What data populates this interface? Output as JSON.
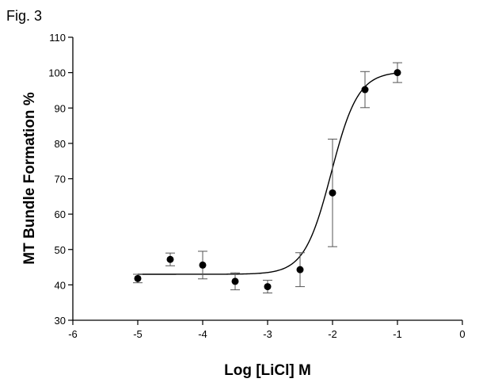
{
  "figure_label": "Fig. 3",
  "chart_data": {
    "type": "scatter",
    "xlabel": "Log [LiCl] M",
    "ylabel": "MT Bundle Formation %",
    "xlim": [
      -6,
      0
    ],
    "ylim": [
      30,
      110
    ],
    "x_ticks": [
      -6,
      -5,
      -4,
      -3,
      -2,
      -1,
      0
    ],
    "y_ticks": [
      30,
      40,
      50,
      60,
      70,
      80,
      90,
      100,
      110
    ],
    "grid": false,
    "legend": "none",
    "points": [
      {
        "x": -5.0,
        "y": 41.8,
        "err": 1.2
      },
      {
        "x": -4.5,
        "y": 47.2,
        "err": 1.8
      },
      {
        "x": -4.0,
        "y": 45.6,
        "err": 3.9
      },
      {
        "x": -3.5,
        "y": 41.0,
        "err": 2.4
      },
      {
        "x": -3.0,
        "y": 39.5,
        "err": 1.8
      },
      {
        "x": -2.5,
        "y": 44.3,
        "err": 4.8
      },
      {
        "x": -2.0,
        "y": 66.0,
        "err": 15.2
      },
      {
        "x": -1.5,
        "y": 95.2,
        "err": 5.1
      },
      {
        "x": -1.0,
        "y": 100.0,
        "err": 2.8
      }
    ],
    "fit_curve": {
      "model": "sigmoid",
      "bottom": 43.0,
      "top": 100.3,
      "log_ec50": -2.02,
      "hill_slope": 2.1,
      "x_range": [
        -5,
        -1
      ]
    }
  }
}
